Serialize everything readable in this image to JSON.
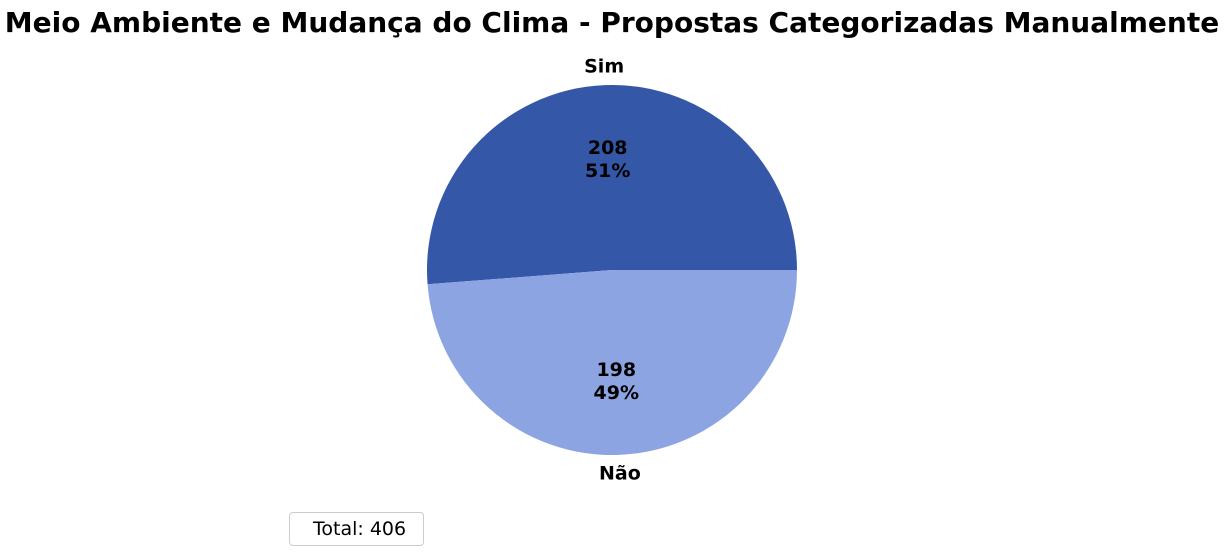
{
  "chart_data": {
    "type": "pie",
    "title": "Meio Ambiente e Mudança do Clima - Propostas Categorizadas Manualmente",
    "slices": [
      {
        "label": "Sim",
        "value": 208,
        "percent": "51%",
        "color": "#3557a8"
      },
      {
        "label": "Não",
        "value": 198,
        "percent": "49%",
        "color": "#8da4e2"
      }
    ],
    "legend": {
      "text": "Total: 406",
      "placement": "lower-left"
    }
  }
}
